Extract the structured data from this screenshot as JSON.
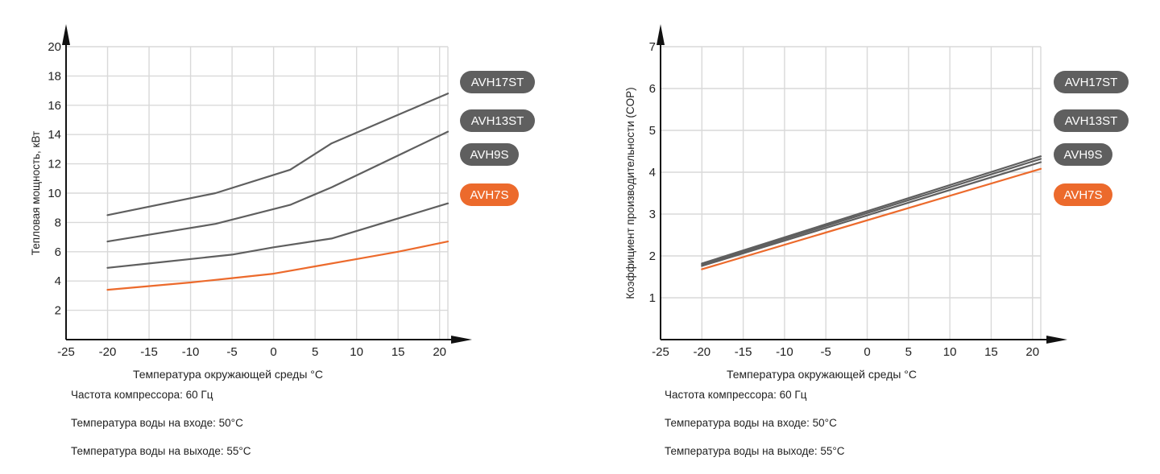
{
  "chart_data": [
    {
      "type": "line",
      "xlabel": "Температура окружающей среды °C",
      "ylabel": "Тепловая мощность, кВт",
      "xlim": [
        -25,
        21
      ],
      "ylim": [
        0,
        20
      ],
      "xticks": [
        "-25",
        "-20",
        "-15",
        "-10",
        "-5",
        "0",
        "5",
        "10",
        "15",
        "20"
      ],
      "yticks": [
        "2",
        "4",
        "6",
        "8",
        "10",
        "12",
        "14",
        "16",
        "18",
        "20"
      ],
      "grid": true,
      "legend_position": "right",
      "series": [
        {
          "name": "AVH17ST",
          "color": "#5f5f5f",
          "x": [
            -20,
            -7,
            2,
            7,
            21
          ],
          "y": [
            8.5,
            10.0,
            11.6,
            13.4,
            16.8
          ]
        },
        {
          "name": "AVH13ST",
          "color": "#5f5f5f",
          "x": [
            -20,
            -7,
            2,
            7,
            21
          ],
          "y": [
            6.7,
            7.9,
            9.2,
            10.4,
            14.2
          ]
        },
        {
          "name": "AVH9S",
          "color": "#5f5f5f",
          "x": [
            -20,
            -15,
            -5,
            0,
            7,
            21
          ],
          "y": [
            4.9,
            5.2,
            5.8,
            6.3,
            6.9,
            9.3
          ]
        },
        {
          "name": "AVH7S",
          "color": "#ec6a2c",
          "x": [
            -20,
            -10,
            -5,
            0,
            5,
            10,
            15,
            21
          ],
          "y": [
            3.4,
            3.9,
            4.2,
            4.5,
            5.0,
            5.5,
            6.0,
            6.7
          ]
        }
      ],
      "notes": [
        "Частота компрессора: 60 Гц",
        "Температура воды на входе: 50°C",
        "Температура воды на выходе: 55°C"
      ]
    },
    {
      "type": "line",
      "xlabel": "Температура окружающей среды °C",
      "ylabel": "Коэффициент производительности (COP)",
      "xlim": [
        -25,
        21
      ],
      "ylim": [
        0,
        7
      ],
      "xticks": [
        "-25",
        "-20",
        "-15",
        "-10",
        "-5",
        "0",
        "5",
        "10",
        "15",
        "20"
      ],
      "yticks": [
        "1",
        "2",
        "3",
        "4",
        "5",
        "6",
        "7"
      ],
      "grid": true,
      "legend_position": "right",
      "series": [
        {
          "name": "AVH17ST",
          "color": "#5f5f5f",
          "x": [
            -20,
            21
          ],
          "y": [
            1.82,
            4.38
          ]
        },
        {
          "name": "AVH13ST",
          "color": "#5f5f5f",
          "x": [
            -20,
            21
          ],
          "y": [
            1.79,
            4.32
          ]
        },
        {
          "name": "AVH9S",
          "color": "#5f5f5f",
          "x": [
            -20,
            21
          ],
          "y": [
            1.76,
            4.24
          ]
        },
        {
          "name": "AVH7S",
          "color": "#ec6a2c",
          "x": [
            -20,
            21
          ],
          "y": [
            1.68,
            4.08
          ]
        }
      ],
      "notes": [
        "Частота компрессора: 60 Гц",
        "Температура воды на входе: 50°C",
        "Температура воды на выходе: 55°C"
      ]
    }
  ]
}
